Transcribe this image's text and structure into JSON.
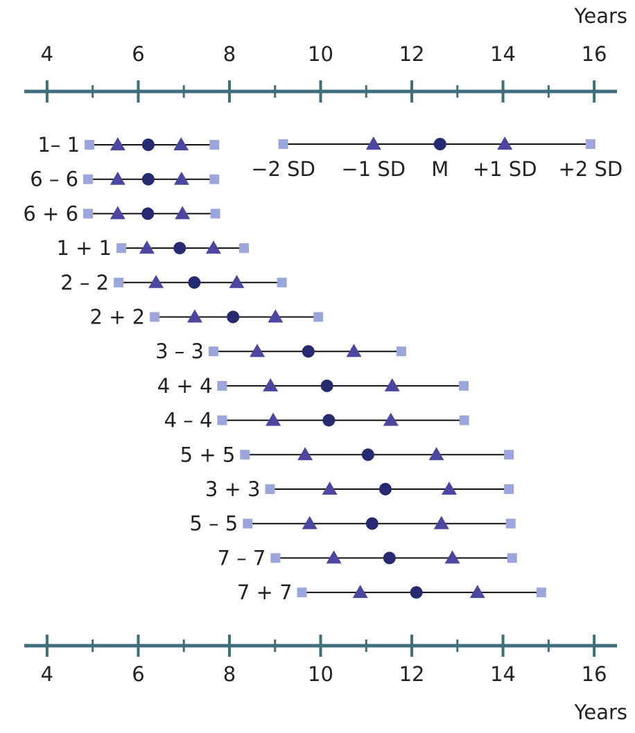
{
  "chart_data": {
    "type": "range",
    "x_label": "Years",
    "xlim": [
      3.5,
      16.5
    ],
    "xticks": [
      4,
      6,
      8,
      10,
      12,
      14,
      16
    ],
    "minor_xticks": [
      5,
      7,
      9,
      11,
      13,
      15
    ],
    "axis_color": "#3e6f7a",
    "categories": [
      "1– 1",
      "6 – 6",
      "6 + 6",
      "1 + 1",
      "2 – 2",
      "2 + 2",
      "3 – 3",
      "4 + 4",
      "4 – 4",
      "5 + 5",
      "3 + 3",
      "5 – 5",
      "7 – 7",
      "7 + 7"
    ],
    "series": [
      {
        "name": "−2 SD",
        "color": "#9aa6dc",
        "marker": "square",
        "legend_value": 9.18,
        "values": [
          4.93,
          4.9,
          4.9,
          5.63,
          5.57,
          6.36,
          7.65,
          7.84,
          7.84,
          8.34,
          8.89,
          8.4,
          9.01,
          9.59
        ]
      },
      {
        "name": "−1 SD",
        "color": "#4b47a0",
        "marker": "triangle",
        "legend_value": 11.16,
        "values": [
          5.55,
          5.55,
          5.55,
          6.19,
          6.39,
          7.24,
          8.61,
          8.9,
          8.96,
          9.66,
          10.2,
          9.76,
          10.29,
          10.87
        ]
      },
      {
        "name": "M",
        "color": "#262a70",
        "marker": "circle",
        "legend_value": 12.62,
        "values": [
          6.22,
          6.22,
          6.21,
          6.91,
          7.23,
          8.08,
          9.73,
          10.14,
          10.18,
          11.04,
          11.42,
          11.13,
          11.51,
          12.1
        ]
      },
      {
        "name": "+1 SD",
        "color": "#4b47a0",
        "marker": "triangle",
        "legend_value": 14.04,
        "values": [
          6.94,
          6.95,
          6.97,
          7.65,
          8.16,
          9.01,
          10.73,
          11.57,
          11.54,
          12.54,
          12.82,
          12.65,
          12.89,
          13.44
        ]
      },
      {
        "name": "+2 SD",
        "color": "#9aa6dc",
        "marker": "square",
        "legend_value": 15.92,
        "values": [
          7.67,
          7.67,
          7.69,
          8.32,
          9.15,
          9.95,
          11.77,
          13.14,
          13.15,
          14.13,
          14.13,
          14.17,
          14.2,
          14.84
        ]
      }
    ]
  }
}
